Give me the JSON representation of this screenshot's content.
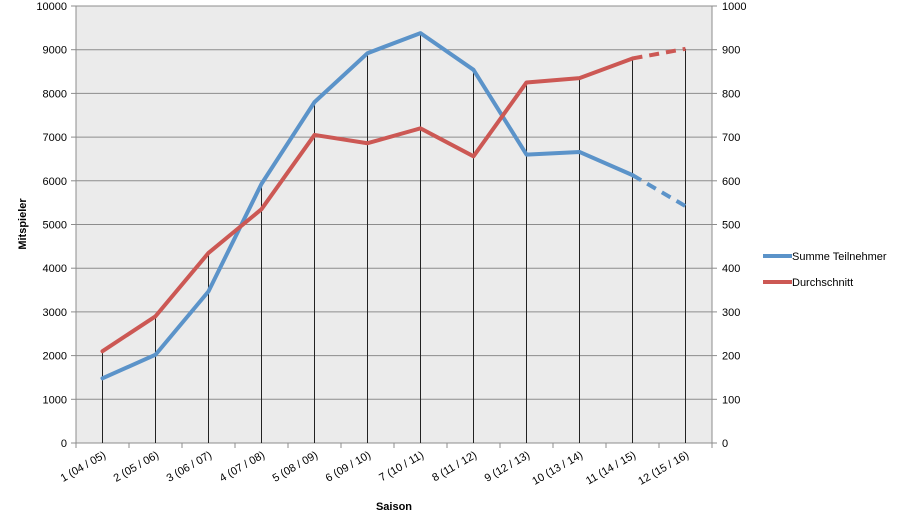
{
  "chart_data": {
    "type": "line",
    "categories": [
      "1 (04 / 05)",
      "2 (05 / 06)",
      "3 (06 / 07)",
      "4 (07 / 08)",
      "5 (08 / 09)",
      "6 (09 / 10)",
      "7 (10 / 11)",
      "8 (11 / 12)",
      "9 (12 / 13)",
      "10 (13 / 14)",
      "11 (14 / 15)",
      "12 (15 / 16)"
    ],
    "xlabel": "Saison",
    "ylabel": "Mitspieler",
    "ylim": [
      0,
      10000
    ],
    "y2lim": [
      0,
      1000
    ],
    "yticks": [
      "0",
      "1000",
      "2000",
      "3000",
      "4000",
      "5000",
      "6000",
      "7000",
      "8000",
      "9000",
      "10000"
    ],
    "y2ticks": [
      "0",
      "100",
      "200",
      "300",
      "400",
      "500",
      "600",
      "700",
      "800",
      "900",
      "1000"
    ],
    "grid": true,
    "drop_lines": true,
    "legend_position": "right",
    "series": [
      {
        "name": "Summe Teilnehmer",
        "axis": "left",
        "color": "#5b93c9",
        "values": [
          1480,
          2020,
          3470,
          5930,
          7800,
          8920,
          9380,
          8540,
          6600,
          6660,
          6130,
          5420
        ],
        "dashed_last_segment": true
      },
      {
        "name": "Durchschnitt",
        "axis": "right",
        "color": "#cc5854",
        "values": [
          210,
          290,
          435,
          535,
          705,
          686,
          720,
          656,
          825,
          835,
          880,
          902
        ],
        "dashed_last_segment": true
      }
    ]
  }
}
